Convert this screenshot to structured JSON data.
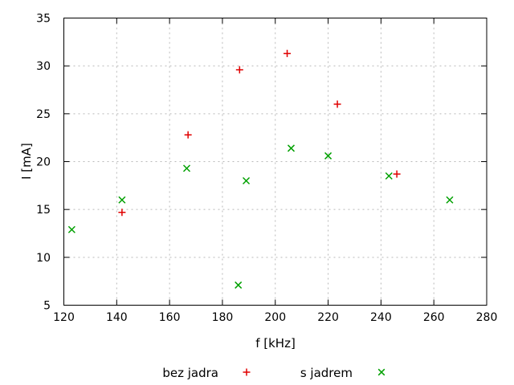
{
  "chart_data": {
    "type": "scatter",
    "title": "",
    "xlabel": "f [kHz]",
    "ylabel": "I [mA]",
    "xlim": [
      120,
      280
    ],
    "ylim": [
      5,
      35
    ],
    "xticks": [
      120,
      140,
      160,
      180,
      200,
      220,
      240,
      260,
      280
    ],
    "yticks": [
      5,
      10,
      15,
      20,
      25,
      30,
      35
    ],
    "grid": true,
    "legend_position": "below-plot",
    "series": [
      {
        "name": "bez jadra",
        "marker": "plus",
        "color": "#e00000",
        "points": [
          [
            142,
            14.7
          ],
          [
            167,
            22.8
          ],
          [
            186.5,
            29.6
          ],
          [
            204.5,
            31.3
          ],
          [
            223.5,
            26.0
          ],
          [
            246,
            18.7
          ]
        ]
      },
      {
        "name": "s jadrem",
        "marker": "cross",
        "color": "#00a000",
        "points": [
          [
            123,
            12.9
          ],
          [
            142,
            16.0
          ],
          [
            166.5,
            19.3
          ],
          [
            186,
            7.1
          ],
          [
            189,
            18.0
          ],
          [
            206,
            21.4
          ],
          [
            220,
            20.6
          ],
          [
            243,
            18.5
          ],
          [
            266,
            16.0
          ]
        ]
      }
    ]
  }
}
